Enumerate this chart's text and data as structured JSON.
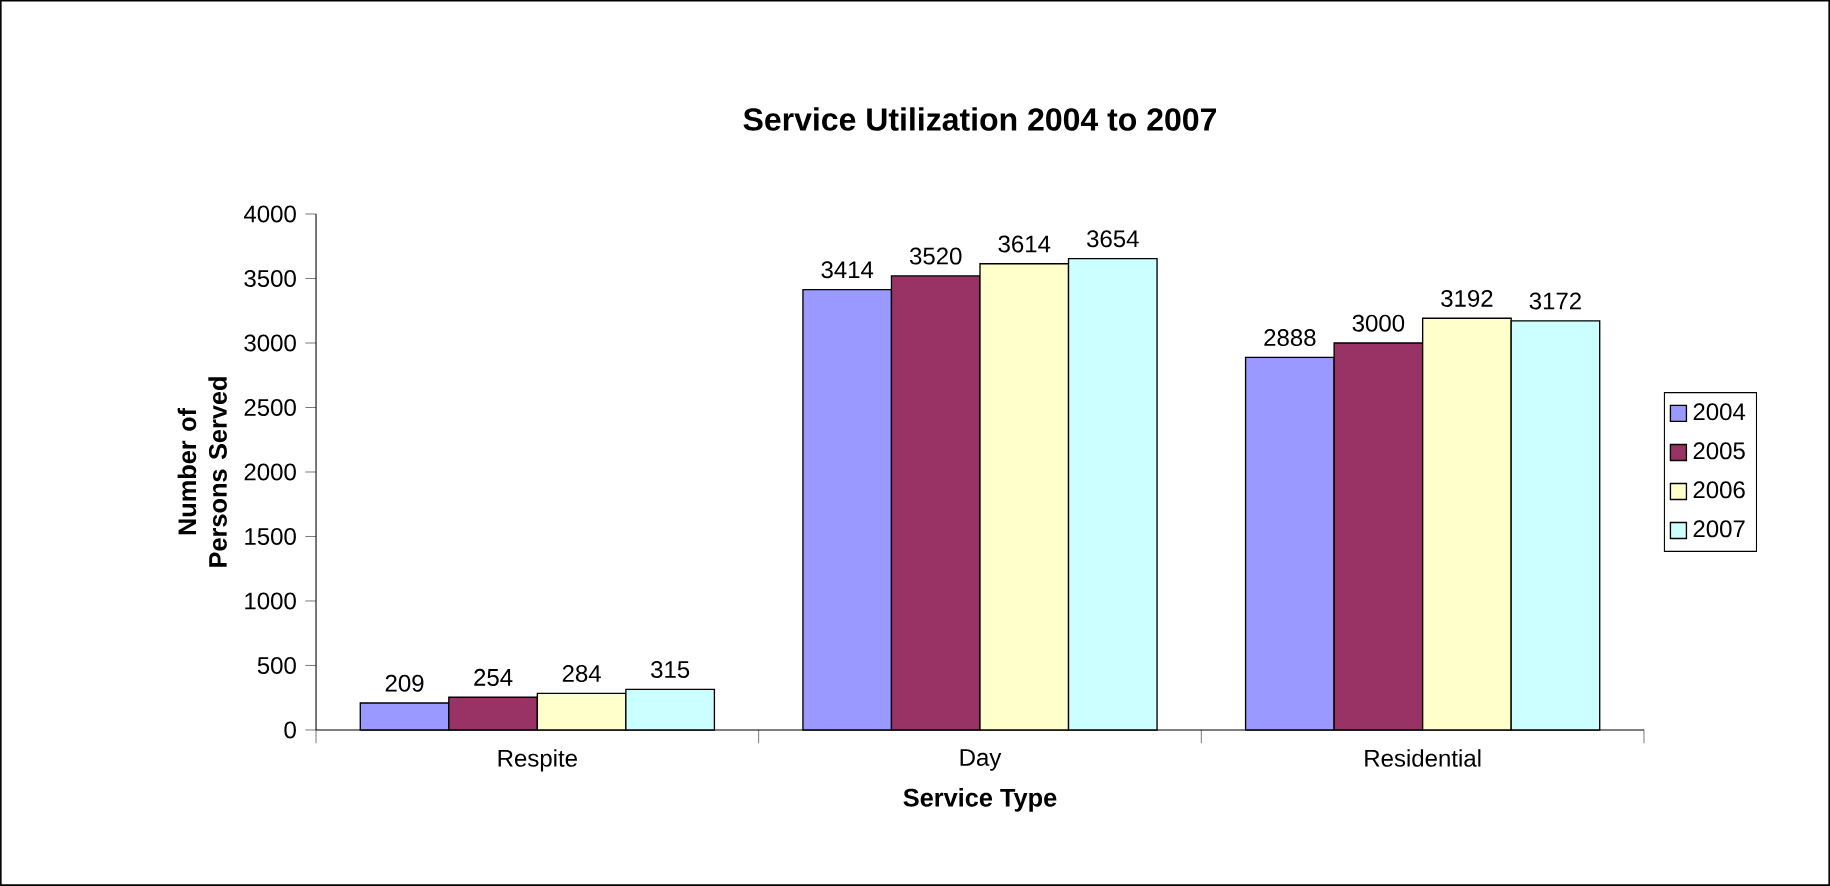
{
  "chart_data": {
    "type": "bar",
    "title": "Service Utilization 2004 to 2007",
    "xlabel": "Service Type",
    "ylabel": "Number of Persons Served",
    "categories": [
      "Respite",
      "Day",
      "Residential"
    ],
    "series": [
      {
        "name": "2004",
        "color": "#9999ff",
        "values": [
          209,
          3414,
          2888
        ]
      },
      {
        "name": "2005",
        "color": "#993366",
        "values": [
          254,
          3520,
          3000
        ]
      },
      {
        "name": "2006",
        "color": "#ffffcc",
        "values": [
          284,
          3614,
          3192
        ]
      },
      {
        "name": "2007",
        "color": "#ccffff",
        "values": [
          315,
          3654,
          3172
        ]
      }
    ],
    "ylim": [
      0,
      4000
    ],
    "yticks": [
      0,
      500,
      1000,
      1500,
      2000,
      2500,
      3000,
      3500,
      4000
    ],
    "data_labels": true,
    "legend": "right",
    "grid": false
  }
}
